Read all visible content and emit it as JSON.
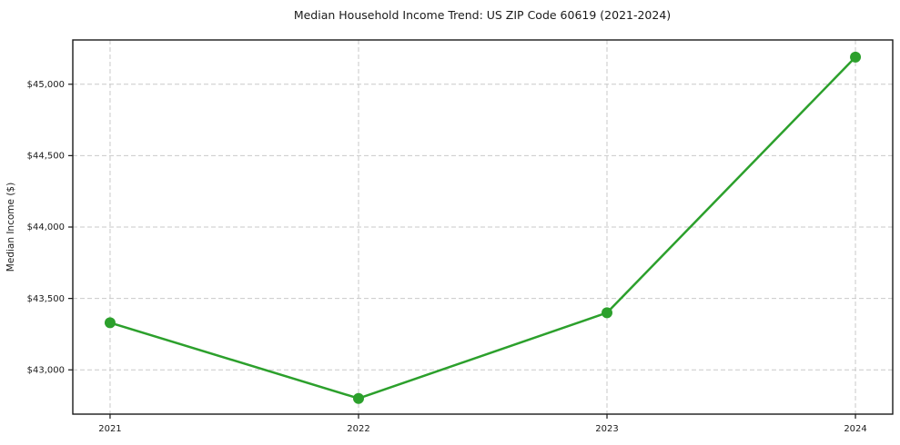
{
  "chart_data": {
    "type": "line",
    "title": "Median Household Income Trend: US ZIP Code 60619 (2021-2024)",
    "xlabel": "",
    "ylabel": "Median Income ($)",
    "x": [
      2021,
      2022,
      2023,
      2024
    ],
    "series": [
      {
        "name": "Median Household Income",
        "values": [
          43330,
          42800,
          43400,
          45190
        ]
      }
    ],
    "x_tick_labels": [
      "2021",
      "2022",
      "2023",
      "2024"
    ],
    "y_ticks": [
      43000,
      43500,
      44000,
      44500,
      45000
    ],
    "y_tick_labels": [
      "$43,000",
      "$43,500",
      "$44,000",
      "$44,500",
      "$45,000"
    ],
    "xlim": [
      2020.85,
      2024.15
    ],
    "ylim": [
      42690,
      45310
    ],
    "grid": true,
    "legend": "none",
    "colors": {
      "line": "#2ca02c",
      "marker": "#2ca02c",
      "gridline": "#c9c9c9",
      "spine": "#1a1a1a",
      "background": "#ffffff",
      "text": "#1a1a1a"
    }
  }
}
